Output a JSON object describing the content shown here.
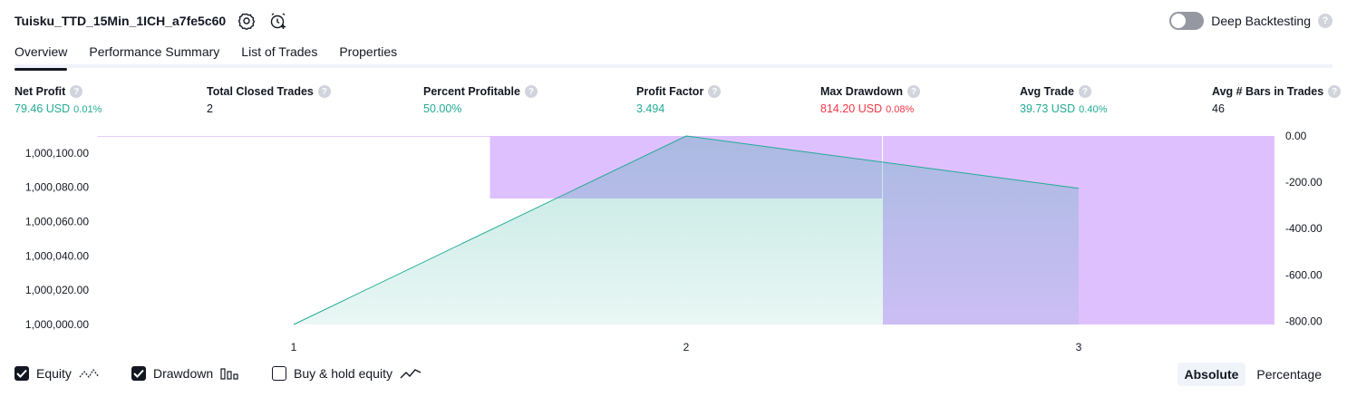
{
  "header": {
    "title": "Tuisku_TTD_15Min_1ICH_a7fe5c60",
    "deep_backtesting_label": "Deep Backtesting"
  },
  "tabs": [
    {
      "label": "Overview",
      "active": true
    },
    {
      "label": "Performance Summary",
      "active": false
    },
    {
      "label": "List of Trades",
      "active": false
    },
    {
      "label": "Properties",
      "active": false
    }
  ],
  "metrics": [
    {
      "label": "Net Profit",
      "value": "79.46 USD",
      "sub": "0.01%",
      "tone": "positive"
    },
    {
      "label": "Total Closed Trades",
      "value": "2",
      "sub": "",
      "tone": "neutral"
    },
    {
      "label": "Percent Profitable",
      "value": "50.00%",
      "sub": "",
      "tone": "positive"
    },
    {
      "label": "Profit Factor",
      "value": "3.494",
      "sub": "",
      "tone": "positive"
    },
    {
      "label": "Max Drawdown",
      "value": "814.20 USD",
      "sub": "0.08%",
      "tone": "negative"
    },
    {
      "label": "Avg Trade",
      "value": "39.73 USD",
      "sub": "0.40%",
      "tone": "positive"
    },
    {
      "label": "Avg # Bars in Trades",
      "value": "46",
      "sub": "",
      "tone": "neutral"
    }
  ],
  "chart_data": {
    "type": "area",
    "x": [
      1,
      2,
      3
    ],
    "x_tick_labels": [
      "1",
      "2",
      "3"
    ],
    "series": [
      {
        "name": "Equity",
        "type": "area",
        "axis": "left",
        "values": [
          1000000.0,
          1000110.0,
          1000079.46
        ],
        "color": "#22ab94"
      },
      {
        "name": "Drawdown",
        "type": "bar",
        "axis": "right",
        "values": [
          0.0,
          -270.0,
          -814.2
        ],
        "color": "#cc99ff"
      }
    ],
    "left_axis": {
      "ticks": [
        "1,000,100.00",
        "1,000,080.00",
        "1,000,060.00",
        "1,000,040.00",
        "1,000,020.00",
        "1,000,000.00"
      ],
      "range": [
        1000000,
        1000110
      ]
    },
    "right_axis": {
      "ticks": [
        "0.00",
        "-200.00",
        "-400.00",
        "-600.00",
        "-800.00"
      ],
      "range": [
        -814.2,
        0
      ]
    }
  },
  "footer": {
    "options": [
      {
        "label": "Equity",
        "checked": true,
        "icon": "equity-line-icon"
      },
      {
        "label": "Drawdown",
        "checked": true,
        "icon": "drawdown-bars-icon"
      },
      {
        "label": "Buy & hold equity",
        "checked": false,
        "icon": "buy-hold-line-icon"
      }
    ],
    "mode": {
      "absolute": "Absolute",
      "percentage": "Percentage",
      "selected": "Absolute"
    }
  }
}
